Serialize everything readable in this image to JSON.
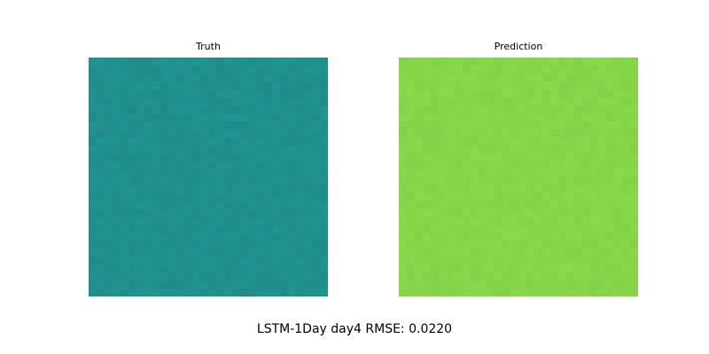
{
  "chart_data": [
    {
      "type": "heatmap",
      "title": "Truth",
      "base_color": "#21908d",
      "axes": "off",
      "grid": false
    },
    {
      "type": "heatmap",
      "title": "Prediction",
      "base_color": "#86d54a",
      "axes": "off",
      "grid": false
    }
  ],
  "figure": {
    "suptitle": "LSTM-1Day day4 RMSE: 0.0220"
  }
}
